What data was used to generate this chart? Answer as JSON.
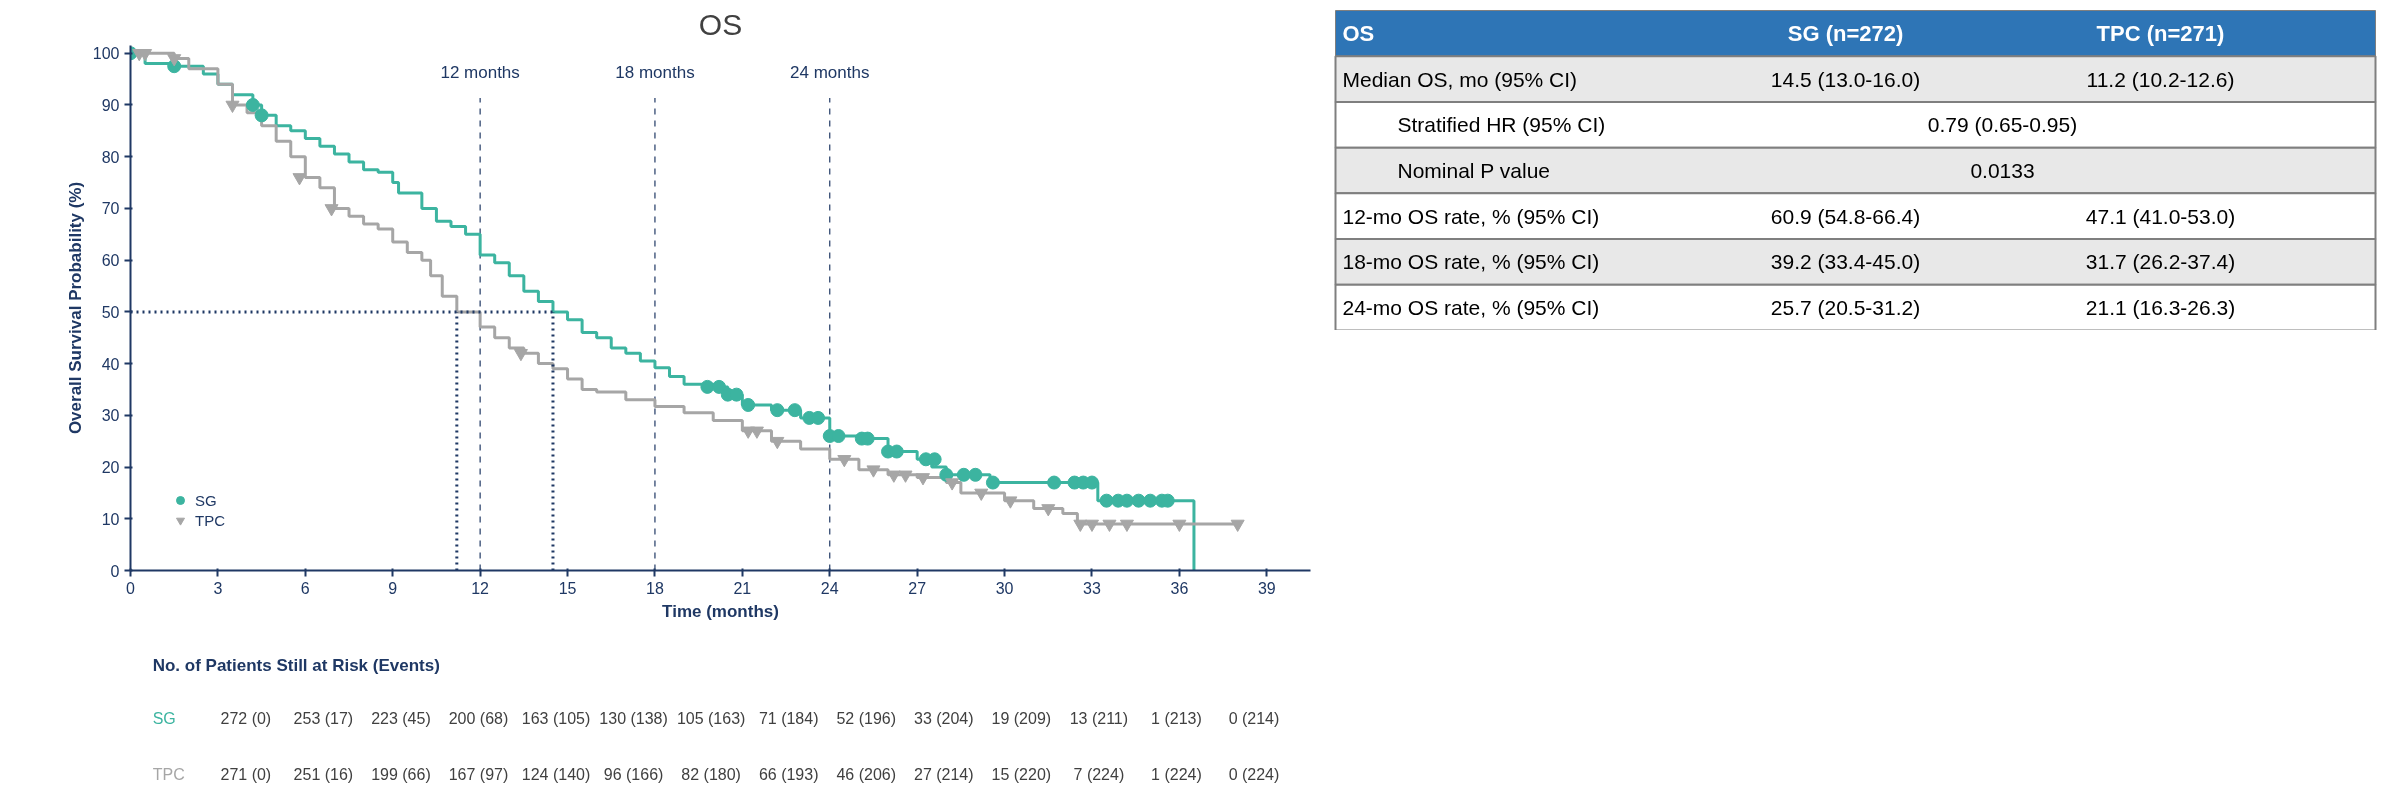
{
  "chart_data": [
    {
      "type": "step",
      "title": "OS",
      "xlabel": "Time (months)",
      "ylabel": "Overall Survival Probability (%)",
      "xlim": [
        0,
        40.5
      ],
      "ylim": [
        0,
        101.5
      ],
      "xticks": [
        0,
        3,
        6,
        9,
        12,
        15,
        18,
        21,
        24,
        27,
        30,
        33,
        36,
        39
      ],
      "yticks": [
        0,
        10,
        20,
        30,
        40,
        50,
        60,
        70,
        80,
        90,
        100
      ],
      "grid": false,
      "legend": "bottom left",
      "ref_lines": [
        {
          "axis": "x",
          "value": 12,
          "label": "12 months",
          "color": "#1f3864",
          "line_style": "dashed"
        },
        {
          "axis": "x",
          "value": 18,
          "label": "18 months",
          "color": "#1f3864",
          "line_style": "dashed"
        },
        {
          "axis": "x",
          "value": 24,
          "label": "24 months",
          "color": "#1f3864",
          "line_style": "dashed"
        }
      ],
      "series": [
        {
          "color": "#3cb4a0",
          "x": [
            0,
            0.5,
            1.5,
            2.5,
            3,
            3.5,
            4.2,
            4.5,
            5,
            5.5,
            6,
            6.5,
            7,
            7.5,
            8,
            8.5,
            9,
            9.2,
            10,
            10.5,
            11,
            11.5,
            12,
            12.5,
            13,
            13.5,
            14,
            14.5,
            15,
            15.5,
            16,
            16.5,
            17,
            17.5,
            18,
            18.5,
            19,
            20,
            20.5,
            21,
            22,
            23,
            24,
            25,
            26,
            27,
            27.5,
            28,
            29.5,
            33.2,
            36.5
          ],
          "values": [
            100,
            98,
            97.5,
            96,
            94,
            92,
            90,
            88,
            86,
            85,
            83.5,
            82,
            80.5,
            79,
            77.5,
            77,
            75,
            73,
            70,
            67.5,
            66.5,
            65,
            61,
            59.5,
            57,
            54,
            52,
            50,
            48.5,
            46,
            45,
            43,
            42,
            40.5,
            39.2,
            37.5,
            36,
            35.5,
            34,
            32,
            31,
            29.5,
            26,
            25.5,
            23,
            21.5,
            20,
            18.5,
            17,
            13.5,
            0
          ]
        },
        {
          "color": "#a6a6a6",
          "x": [
            0,
            1.5,
            2,
            3,
            3.5,
            4,
            4.5,
            5,
            5.5,
            6,
            6.5,
            7,
            7.5,
            8,
            8.5,
            9,
            9.5,
            10,
            10.3,
            10.7,
            11.2,
            12,
            12.5,
            13,
            13.5,
            14,
            14.5,
            15,
            15.5,
            16,
            17,
            18,
            19,
            20,
            21,
            22,
            23,
            24,
            25,
            26,
            27,
            28,
            28.5,
            30,
            31,
            32,
            32.5,
            38
          ],
          "values": [
            100,
            99,
            97,
            94,
            90,
            88.5,
            86,
            83,
            80,
            76,
            74,
            70,
            68.5,
            67,
            66,
            63.5,
            61.5,
            60,
            57,
            53,
            50,
            47.1,
            45,
            43,
            42,
            40,
            39,
            37,
            35,
            34.5,
            33,
            31.7,
            30.5,
            29,
            27,
            25,
            23.5,
            21.5,
            19.5,
            18.5,
            18,
            17,
            15,
            13.5,
            12,
            11,
            9,
            9
          ]
        },
        {
          "type": "scatter",
          "name": "SG",
          "marker": "circle",
          "color": "#3cb4a0",
          "x": [
            0,
            1.5,
            4.2,
            4.5,
            19.8,
            20.2,
            20.5,
            20.8,
            21.2,
            22.2,
            22.8,
            23.3,
            23.6,
            24.0,
            24.3,
            25.1,
            25.3,
            26.0,
            26.3,
            27.3,
            27.6,
            28.0,
            28.6,
            29.0,
            29.6,
            31.7,
            32.4,
            32.7,
            33.0,
            33.5,
            33.9,
            34.2,
            34.6,
            35.0,
            35.4,
            35.6
          ],
          "values": [
            100,
            97.5,
            90,
            88,
            35.5,
            35.5,
            34,
            34,
            32,
            31,
            31,
            29.5,
            29.5,
            26,
            26,
            25.5,
            25.5,
            23,
            23,
            21.5,
            21.5,
            18.5,
            18.5,
            18.5,
            17,
            17,
            17,
            17,
            17,
            13.5,
            13.5,
            13.5,
            13.5,
            13.5,
            13.5,
            13.5
          ]
        },
        {
          "type": "scatter",
          "name": "TPC",
          "marker": "triangle",
          "color": "#a6a6a6",
          "x": [
            0.3,
            0.5,
            1.5,
            3.5,
            5.8,
            6.9,
            13.4,
            21.2,
            21.5,
            22.2,
            24.5,
            25.5,
            26.2,
            26.6,
            27.2,
            28.2,
            29.2,
            30.2,
            31.5,
            32.6,
            33.0,
            33.6,
            34.2,
            36.0,
            38.0
          ],
          "values": [
            100,
            100,
            99,
            90,
            76,
            70,
            42,
            27,
            27,
            25,
            21.5,
            19.5,
            18.5,
            18.5,
            18,
            17,
            15,
            13.5,
            12,
            9,
            9,
            9,
            9,
            9,
            9
          ]
        },
        {
          "type": "line",
          "color": "#1f3864",
          "line_style": "dotted",
          "x": [
            0,
            14.5
          ],
          "values": [
            50,
            50
          ]
        },
        {
          "type": "line",
          "color": "#1f3864",
          "line_style": "dotted",
          "x": [
            11.2,
            11.2
          ],
          "values": [
            0,
            50
          ]
        },
        {
          "type": "line",
          "color": "#1f3864",
          "line_style": "dotted",
          "x": [
            14.5,
            14.5
          ],
          "values": [
            0,
            50
          ]
        }
      ]
    },
    {
      "type": "other",
      "title": "OS",
      "categories": [
        "SG (n=272)",
        "TPC (n=271)"
      ],
      "y_categories": [
        "Median OS, mo (95% CI)",
        "Stratified HR (95% CI)",
        "Nominal P value",
        "12-mo OS rate, % (95% CI)",
        "18-mo OS rate, % (95% CI)",
        "24-mo OS rate, % (95% CI)"
      ],
      "cell_labels": [
        [
          "14.5 (13.0-16.0)",
          "11.2 (10.2-12.6)"
        ],
        [
          "0.79 (0.65-0.95)",
          null
        ],
        [
          "0.0133",
          null
        ],
        [
          "60.9 (54.8-66.4)",
          "47.1 (41.0-53.0)"
        ],
        [
          "39.2 (33.4-45.0)",
          "31.7 (26.2-37.4)"
        ],
        [
          "25.7 (20.5-31.2)",
          "21.1 (16.3-26.3)"
        ]
      ]
    },
    {
      "type": "other",
      "title": "No. of Patients Still at Risk (Events)",
      "y_categories": [
        "SG",
        "TPC"
      ],
      "colors": [
        "#3cb4a0",
        "#a6a6a6"
      ],
      "cell_labels": [
        [
          "272 (0)",
          "253 (17)",
          "223 (45)",
          "200 (68)",
          "163 (105)",
          "130 (138)",
          "105 (163)",
          "71 (184)",
          "52 (196)",
          "33 (204)",
          "19 (209)",
          "13 (211)",
          "1 (213)",
          "0 (214)"
        ],
        [
          "271 (0)",
          "251 (16)",
          "199 (66)",
          "167 (97)",
          "124 (140)",
          "96 (166)",
          "82 (180)",
          "66 (193)",
          "46 (206)",
          "27 (214)",
          "15 (220)",
          "7 (224)",
          "1 (224)",
          "0 (224)"
        ]
      ]
    }
  ]
}
